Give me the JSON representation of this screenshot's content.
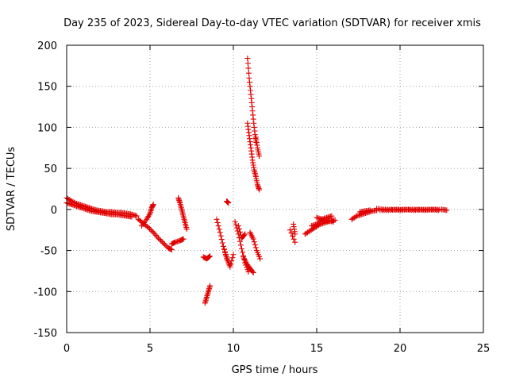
{
  "chart_data": {
    "type": "scatter",
    "title": "Day 235 of 2023, Sidereal Day-to-day VTEC variation (SDTVAR) for receiver xmis",
    "xlabel": "GPS time / hours",
    "ylabel": "SDTVAR / TECUs",
    "xlim": [
      0,
      25
    ],
    "ylim": [
      -150,
      200
    ],
    "xticks": [
      0,
      5,
      10,
      15,
      20,
      25
    ],
    "yticks": [
      -150,
      -100,
      -50,
      0,
      50,
      100,
      150,
      200
    ],
    "xtick_labels": [
      "0",
      "5",
      "10",
      "15",
      "20",
      "25"
    ],
    "ytick_labels": [
      "-150",
      "-100",
      "-50",
      "0",
      "50",
      "100",
      "150",
      "200"
    ],
    "grid": true,
    "marker": "+",
    "series": [
      {
        "name": "SDTVAR",
        "color": "#e00000",
        "segments": [
          {
            "x": [
              0.0,
              0.3,
              0.6,
              0.9,
              1.2,
              1.5,
              1.8,
              2.1,
              2.4,
              2.7,
              3.0,
              3.3,
              3.6,
              3.9,
              4.2
            ],
            "y": [
              14,
              10,
              7,
              5,
              3,
              1,
              -1,
              -2,
              -3,
              -3,
              -4,
              -4,
              -5,
              -6,
              -8
            ]
          },
          {
            "x": [
              0.0,
              0.3,
              0.6,
              0.9,
              1.2,
              1.5,
              1.8,
              2.1,
              2.4,
              2.7,
              3.0,
              3.3,
              3.6,
              3.9
            ],
            "y": [
              8,
              6,
              4,
              2,
              0,
              -2,
              -3,
              -4,
              -5,
              -6,
              -6,
              -7,
              -8,
              -9
            ]
          },
          {
            "x": [
              4.3,
              4.6,
              4.9,
              5.2,
              5.5,
              5.8,
              6.1,
              6.3
            ],
            "y": [
              -12,
              -17,
              -22,
              -28,
              -35,
              -41,
              -47,
              -49
            ]
          },
          {
            "x": [
              4.5,
              4.8,
              5.0,
              5.1,
              5.2
            ],
            "y": [
              -20,
              -12,
              -5,
              2,
              6
            ]
          },
          {
            "x": [
              6.3,
              6.5,
              6.8,
              7.0
            ],
            "y": [
              -42,
              -40,
              -38,
              -36
            ]
          },
          {
            "x": [
              6.7,
              6.8,
              6.9,
              7.0,
              7.1,
              7.2
            ],
            "y": [
              14,
              8,
              0,
              -8,
              -16,
              -24
            ]
          },
          {
            "x": [
              8.2,
              8.4,
              8.6
            ],
            "y": [
              -58,
              -60,
              -57
            ]
          },
          {
            "x": [
              8.3,
              8.4,
              8.5,
              8.6
            ],
            "y": [
              -114,
              -107,
              -100,
              -93
            ]
          },
          {
            "x": [
              9.0,
              9.2,
              9.4,
              9.6,
              9.8
            ],
            "y": [
              -12,
              -28,
              -45,
              -58,
              -68
            ]
          },
          {
            "x": [
              9.4,
              9.6,
              9.8,
              10.0
            ],
            "y": [
              -45,
              -60,
              -70,
              -55
            ]
          },
          {
            "x": [
              9.6,
              9.7
            ],
            "y": [
              10,
              8
            ]
          },
          {
            "x": [
              10.1,
              10.3,
              10.5,
              10.7,
              10.9
            ],
            "y": [
              -15,
              -30,
              -48,
              -65,
              -76
            ]
          },
          {
            "x": [
              10.6,
              10.8,
              11.0,
              11.2
            ],
            "y": [
              -58,
              -66,
              -72,
              -77
            ]
          },
          {
            "x": [
              10.3,
              10.5,
              10.7
            ],
            "y": [
              -20,
              -35,
              -30
            ]
          },
          {
            "x": [
              10.85,
              10.95,
              11.05,
              11.15,
              11.25,
              11.35
            ],
            "y": [
              184,
              160,
              140,
              120,
              100,
              82
            ]
          },
          {
            "x": [
              10.85,
              10.95,
              11.05,
              11.15,
              11.25,
              11.35,
              11.45,
              11.55
            ],
            "y": [
              105,
              90,
              75,
              60,
              48,
              40,
              30,
              24
            ]
          },
          {
            "x": [
              11.35,
              11.45,
              11.55
            ],
            "y": [
              88,
              75,
              65
            ]
          },
          {
            "x": [
              11.0,
              11.2,
              11.4,
              11.6
            ],
            "y": [
              -28,
              -36,
              -50,
              -60
            ]
          },
          {
            "x": [
              13.4,
              13.7
            ],
            "y": [
              -25,
              -40
            ]
          },
          {
            "x": [
              13.6,
              13.7
            ],
            "y": [
              -18,
              -30
            ]
          },
          {
            "x": [
              14.3,
              14.6,
              14.9,
              15.2,
              15.5,
              15.8,
              16.1
            ],
            "y": [
              -30,
              -26,
              -22,
              -18,
              -16,
              -14,
              -13
            ]
          },
          {
            "x": [
              14.7,
              15.0,
              15.3,
              15.6,
              15.9
            ],
            "y": [
              -20,
              -18,
              -12,
              -10,
              -8
            ]
          },
          {
            "x": [
              15.0,
              15.3,
              15.6,
              16.0
            ],
            "y": [
              -10,
              -12,
              -14,
              -15
            ]
          },
          {
            "x": [
              17.1,
              17.4,
              17.7,
              18.0,
              18.3,
              18.6
            ],
            "y": [
              -12,
              -8,
              -6,
              -4,
              -2,
              -1
            ]
          },
          {
            "x": [
              17.6,
              17.9,
              18.2
            ],
            "y": [
              -3,
              -2,
              -1
            ]
          },
          {
            "x": [
              18.6,
              19.0,
              19.5,
              20.0,
              20.5,
              21.0,
              21.5,
              22.0,
              22.5,
              22.8
            ],
            "y": [
              1,
              0,
              0,
              -1,
              0,
              0,
              -1,
              0,
              0,
              -1
            ]
          },
          {
            "x": [
              18.8,
              19.3,
              19.8,
              20.3,
              20.8,
              21.3,
              21.8,
              22.3
            ],
            "y": [
              -1,
              -1,
              0,
              0,
              -1,
              0,
              0,
              -1
            ]
          }
        ]
      }
    ]
  }
}
